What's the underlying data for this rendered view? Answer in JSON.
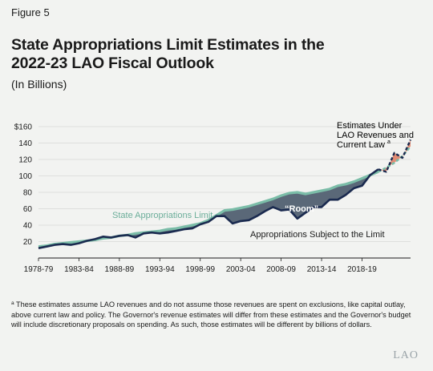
{
  "figure_label": "Figure 5",
  "title_line1": "State Appropriations Limit Estimates in the",
  "title_line2": "2022-23 LAO Fiscal Outlook",
  "subtitle": "(In Billions)",
  "footnote_marker": "a",
  "footnote": "These estimates assume LAO revenues and do not assume those revenues are spent on exclusions, like capital outlay, above current law and policy. The Governor's revenue estimates will differ from these estimates and the Governor's budget will include discretionary proposals on spending. As such, those estimates will be different by billions of dollars.",
  "logo": "LAO",
  "colors": {
    "limit": "#7bbda8",
    "subject": "#1a2a4f",
    "room": "#5a6878",
    "estimate_fill": "#e07a5f"
  },
  "chart_data": {
    "type": "area",
    "xlabel": "",
    "ylabel": "",
    "ylim": [
      0,
      160
    ],
    "y_ticks": [
      20,
      40,
      60,
      80,
      100,
      120,
      140,
      160
    ],
    "y_tick_labels": [
      "20",
      "40",
      "60",
      "80",
      "100",
      "120",
      "140",
      "$160"
    ],
    "x_tick_labels": [
      "1978-79",
      "1983-84",
      "1988-89",
      "1993-94",
      "1998-99",
      "2003-04",
      "2008-09",
      "2013-14",
      "2018-19"
    ],
    "x_tick_years": [
      1978,
      1983,
      1988,
      1993,
      1998,
      2003,
      2008,
      2013,
      2018
    ],
    "xlim": [
      1978,
      2024
    ],
    "estimate_start_year": 2020,
    "x": [
      1978,
      1979,
      1980,
      1981,
      1982,
      1983,
      1984,
      1985,
      1986,
      1987,
      1988,
      1989,
      1990,
      1991,
      1992,
      1993,
      1994,
      1995,
      1996,
      1997,
      1998,
      1999,
      2000,
      2001,
      2002,
      2003,
      2004,
      2005,
      2006,
      2007,
      2008,
      2009,
      2010,
      2011,
      2012,
      2013,
      2014,
      2015,
      2016,
      2017,
      2018,
      2019,
      2020,
      2021,
      2022,
      2023,
      2024
    ],
    "series": [
      {
        "name": "State Appropriations Limit",
        "values": [
          14,
          15,
          17,
          18,
          19,
          20,
          21,
          22,
          24,
          25,
          27,
          28,
          30,
          31,
          32,
          33,
          35,
          36,
          38,
          40,
          42,
          46,
          52,
          58,
          59,
          61,
          63,
          66,
          69,
          72,
          76,
          79,
          80,
          78,
          80,
          82,
          84,
          88,
          90,
          93,
          97,
          101,
          105,
          110,
          116,
          124,
          136
        ]
      },
      {
        "name": "Appropriations Subject to the Limit",
        "values": [
          12,
          14,
          16,
          17,
          16,
          18,
          21,
          23,
          26,
          25,
          27,
          28,
          25,
          30,
          31,
          30,
          31,
          33,
          35,
          36,
          41,
          44,
          51,
          51,
          42,
          45,
          46,
          51,
          57,
          62,
          58,
          59,
          48,
          55,
          62,
          62,
          71,
          71,
          77,
          85,
          88,
          101,
          108,
          105,
          128,
          122,
          144
        ]
      }
    ],
    "annotations": {
      "limit_label": "State Appropriations Limit",
      "subject_label": "Appropriations Subject to the Limit",
      "room_label": "“Room”",
      "estimates_line1": "Estimates Under",
      "estimates_line2": "LAO Revenues and",
      "estimates_line3": "Current Law",
      "estimates_marker": "a"
    }
  }
}
